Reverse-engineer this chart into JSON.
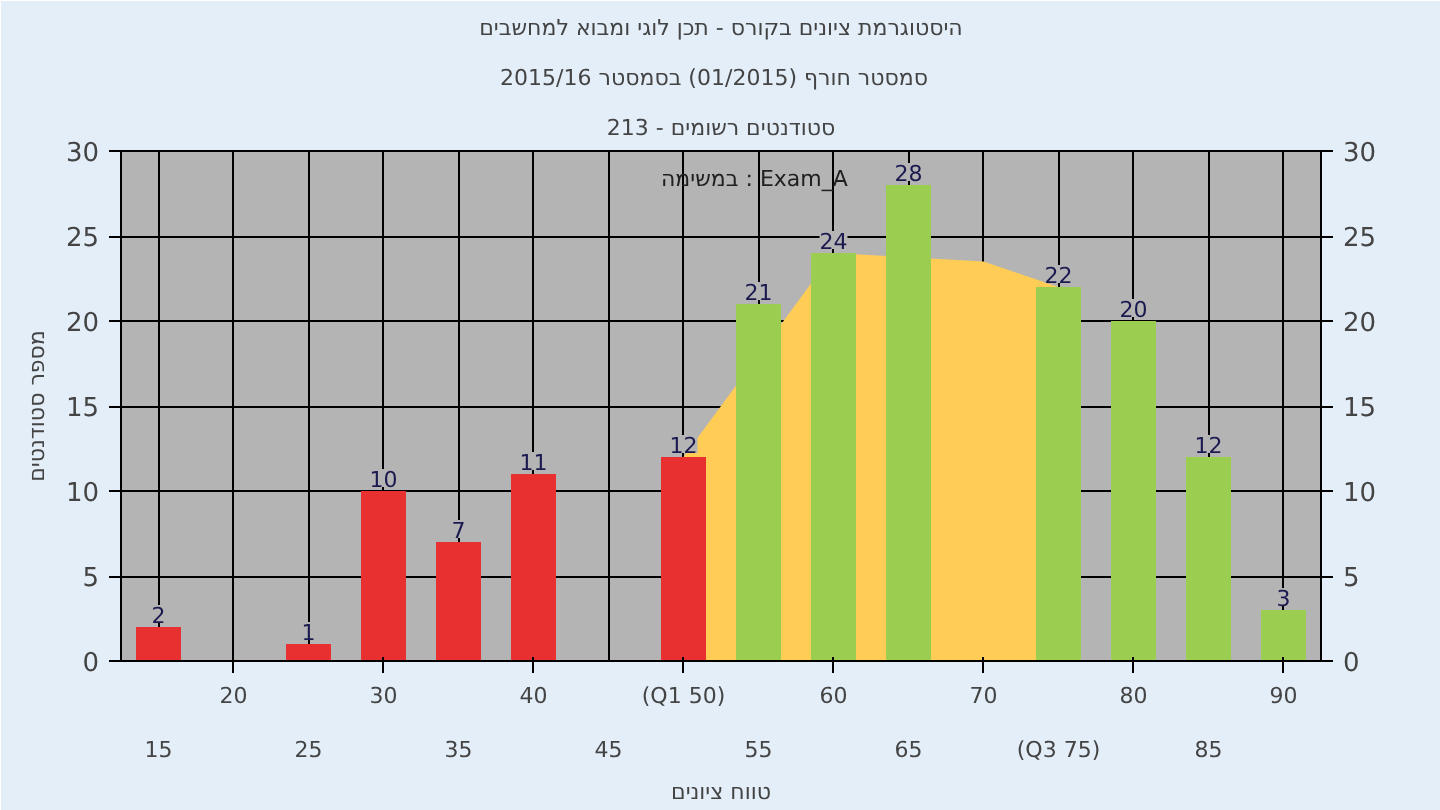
{
  "chart_data": {
    "type": "bar",
    "title": "היסטוגרמת ציונים בקורס - תכן לוגי ומבוא למחשבים",
    "subtitle": "2015/16 סמסטר חורף  (01/2015)  בסמסטר",
    "xlabel": "טווח ציונים",
    "ylabel": "מספר סטודנטים",
    "annotations": [
      "סטודנטים רשומים - 213",
      "במשימה : Exam_A"
    ],
    "categories": [
      "15",
      "20",
      "25",
      "30",
      "35",
      "40",
      "45",
      "(Q1 50)",
      "55",
      "60",
      "65",
      "70",
      "(Q3 75)",
      "80",
      "85",
      "90"
    ],
    "series": [
      {
        "type": "area",
        "color": "#ffcc55",
        "values": [
          null,
          null,
          null,
          null,
          null,
          null,
          null,
          12,
          null,
          24,
          null,
          23.5,
          22,
          null,
          null,
          null
        ]
      },
      {
        "values": [
          2,
          0,
          1,
          10,
          7,
          11,
          0,
          12,
          21,
          24,
          28,
          0,
          22,
          20,
          12,
          3
        ],
        "colors": [
          "#e83030",
          "#e83030",
          "#e83030",
          "#e83030",
          "#e83030",
          "#e83030",
          "#e83030",
          "#e83030",
          "#9acd50",
          "#9acd50",
          "#9acd50",
          "#9acd50",
          "#9acd50",
          "#9acd50",
          "#9acd50",
          "#9acd50"
        ],
        "value_labels": [
          "2",
          null,
          "1",
          "10",
          "7",
          "11",
          null,
          "12",
          "21",
          "24",
          "28",
          null,
          "22",
          "20",
          "12",
          "3"
        ]
      }
    ],
    "ylim": [
      0,
      30
    ],
    "yticks": [
      0,
      5,
      10,
      15,
      20,
      25,
      30
    ],
    "y2lim": [
      0,
      30
    ],
    "y2ticks": [
      0,
      5,
      10,
      15,
      20,
      25,
      30
    ],
    "grid": true
  }
}
